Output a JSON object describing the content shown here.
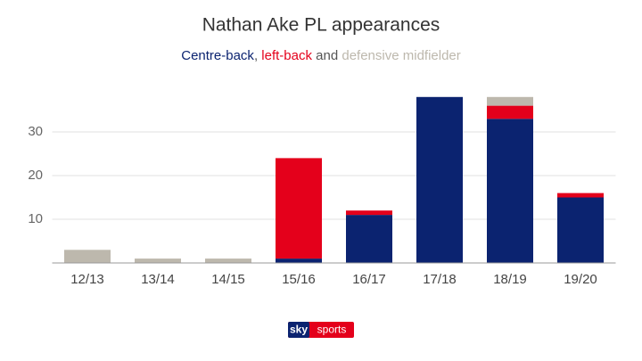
{
  "chart_data": {
    "type": "stacked_bar",
    "title": "Nathan Ake PL appearances",
    "subtitle_joiners": [
      ",",
      "and"
    ],
    "categories": [
      "12/13",
      "13/14",
      "14/15",
      "15/16",
      "16/17",
      "17/18",
      "18/19",
      "19/20"
    ],
    "series": [
      {
        "name": "Centre-back",
        "color": "#0b2370",
        "values": [
          0,
          0,
          0,
          1,
          11,
          38,
          33,
          15
        ]
      },
      {
        "name": "left-back",
        "color": "#e4001b",
        "values": [
          0,
          0,
          0,
          23,
          1,
          0,
          3,
          1
        ]
      },
      {
        "name": "defensive midfielder",
        "color": "#bdb8ad",
        "values": [
          3,
          1,
          1,
          0,
          0,
          0,
          2,
          0
        ]
      }
    ],
    "ylim": [
      0,
      40
    ],
    "yticks": [
      10,
      20,
      30
    ],
    "grid": true,
    "logo": [
      "sky",
      "sports"
    ]
  }
}
